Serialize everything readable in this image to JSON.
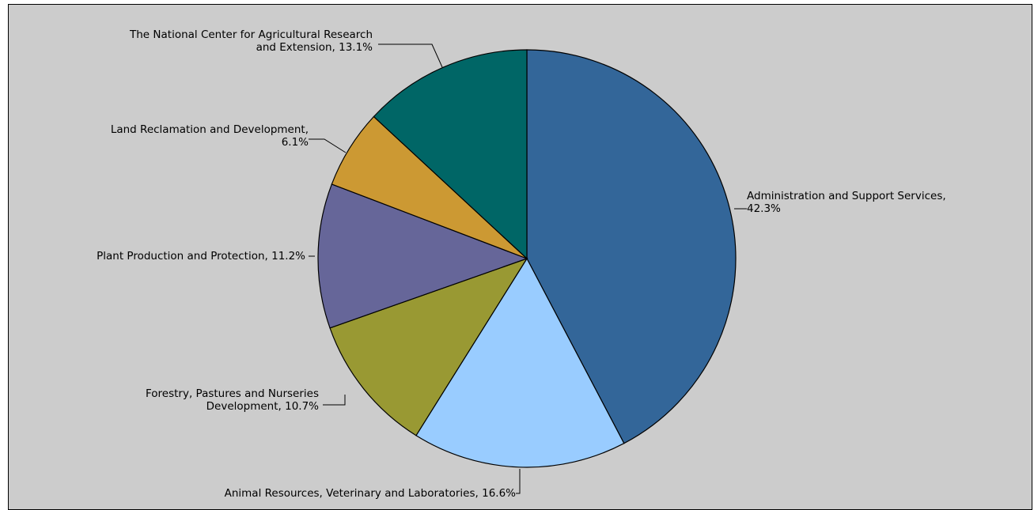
{
  "chart_data": {
    "type": "pie",
    "start": "top",
    "direction": "clockwise",
    "slices": [
      {
        "name": "Administration and Support Services",
        "value": 42.3,
        "color": "#336699",
        "label_lines": [
          "Administration and Support Services,",
          "42.3%"
        ]
      },
      {
        "name": "Animal Resources, Veterinary and Laboratories",
        "value": 16.6,
        "color": "#99ccff",
        "label_lines": [
          "Animal Resources, Veterinary and Laboratories, 16.6%"
        ]
      },
      {
        "name": "Forestry, Pastures and Nurseries Development",
        "value": 10.7,
        "color": "#999933",
        "label_lines": [
          "Forestry, Pastures and Nurseries",
          "Development, 10.7%"
        ]
      },
      {
        "name": "Plant Production and Protection",
        "value": 11.2,
        "color": "#666699",
        "label_lines": [
          "Plant Production and Protection, 11.2%"
        ]
      },
      {
        "name": "Land Reclamation and Development",
        "value": 6.1,
        "color": "#cc9933",
        "label_lines": [
          "Land Reclamation and Development,",
          "6.1%"
        ]
      },
      {
        "name": "The National Center for Agricultural Research and Extension",
        "value": 13.1,
        "color": "#006666",
        "label_lines": [
          "The National Center for Agricultural Research",
          "and Extension, 13.1%"
        ]
      }
    ]
  }
}
